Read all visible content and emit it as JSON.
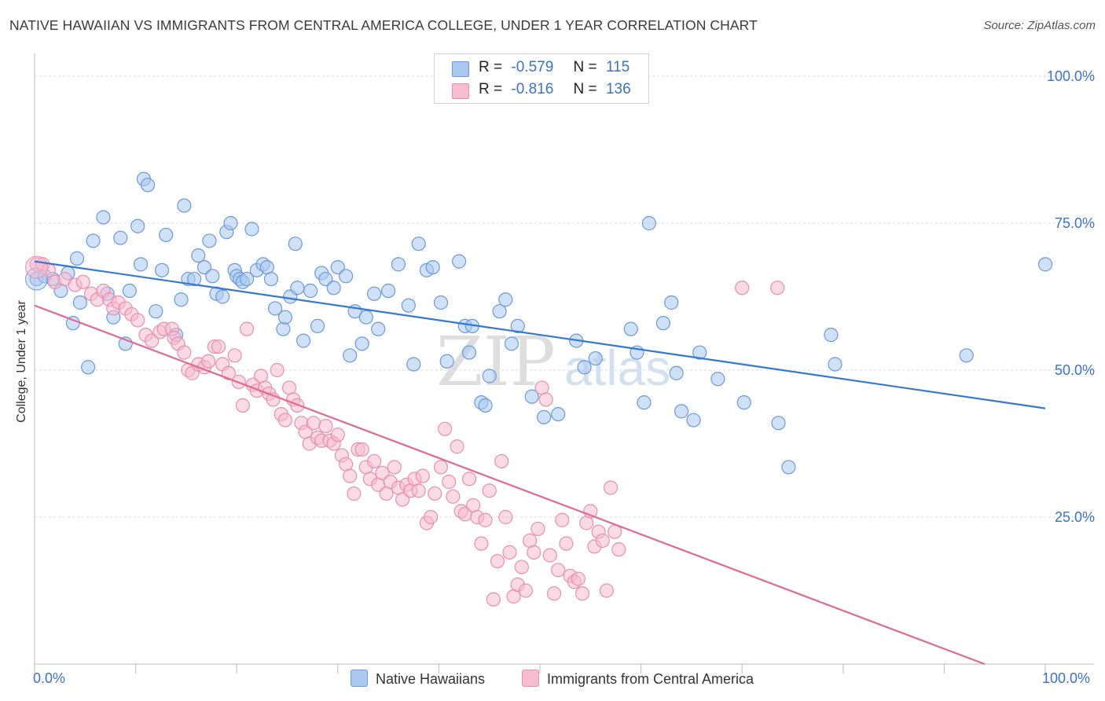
{
  "header": {
    "title": "NATIVE HAWAIIAN VS IMMIGRANTS FROM CENTRAL AMERICA COLLEGE, UNDER 1 YEAR CORRELATION CHART",
    "source": "Source: ZipAtlas.com"
  },
  "legend": {
    "r_label": "R =",
    "n_label": "N =",
    "rows": [
      {
        "r": "-0.579",
        "n": "115"
      },
      {
        "r": "-0.816",
        "n": "136"
      }
    ]
  },
  "bottom_legend": {
    "series1": "Native Hawaiians",
    "series2": "Immigrants from Central America"
  },
  "x_axis": {
    "min_label": "0.0%",
    "max_label": "100.0%"
  },
  "watermark": {
    "zip": "ZIP",
    "atlas": "atlas"
  },
  "colors": {
    "blue_fill": "#aac8f0",
    "blue_stroke": "#6a9ad8",
    "blue_line": "#3478d0",
    "pink_fill": "#f6bcd0",
    "pink_stroke": "#e78fae",
    "pink_line": "#e06a96",
    "tick_text": "#3a72c8",
    "grid": "#d8d8d8"
  },
  "chart_data": {
    "type": "scatter",
    "title": "NATIVE HAWAIIAN VS IMMIGRANTS FROM CENTRAL AMERICA COLLEGE, UNDER 1 YEAR CORRELATION CHART",
    "xlabel": "",
    "ylabel": "College, Under 1 year",
    "xlim": [
      0,
      100
    ],
    "ylim": [
      0,
      100
    ],
    "x_ticks_labeled": [
      "0.0%",
      "100.0%"
    ],
    "y_ticks": [
      25,
      50,
      75,
      100
    ],
    "y_tick_labels": [
      "25.0%",
      "50.0%",
      "75.0%",
      "100.0%"
    ],
    "grid": true,
    "series": [
      {
        "name": "Native Hawaiians",
        "r": -0.579,
        "n": 115,
        "trend": {
          "x0": 0,
          "y0": 68.5,
          "x1": 100,
          "y1": 43.5
        },
        "points": [
          [
            0.2,
            65.5
          ],
          [
            1,
            66
          ],
          [
            1.8,
            65.5
          ],
          [
            2.6,
            63.5
          ],
          [
            3.3,
            66.5
          ],
          [
            3.8,
            58
          ],
          [
            4.2,
            69
          ],
          [
            4.5,
            61.5
          ],
          [
            5.3,
            50.5
          ],
          [
            5.8,
            72
          ],
          [
            6.8,
            76
          ],
          [
            7.2,
            63
          ],
          [
            7.8,
            59
          ],
          [
            8.5,
            72.5
          ],
          [
            9,
            54.5
          ],
          [
            9.4,
            63.5
          ],
          [
            10.2,
            74.5
          ],
          [
            10.8,
            82.5
          ],
          [
            10.5,
            68
          ],
          [
            11.2,
            81.5
          ],
          [
            12,
            60
          ],
          [
            12.6,
            67
          ],
          [
            13,
            73
          ],
          [
            14,
            56
          ],
          [
            14.5,
            62
          ],
          [
            14.8,
            78
          ],
          [
            15.2,
            65.5
          ],
          [
            15.8,
            65.5
          ],
          [
            16.2,
            69.5
          ],
          [
            16.8,
            67.5
          ],
          [
            17.3,
            72
          ],
          [
            17.6,
            66
          ],
          [
            18,
            63
          ],
          [
            18.6,
            62.5
          ],
          [
            19,
            73.5
          ],
          [
            19.4,
            75
          ],
          [
            19.8,
            67
          ],
          [
            20,
            66
          ],
          [
            20.3,
            65.5
          ],
          [
            20.6,
            65
          ],
          [
            21,
            65.5
          ],
          [
            21.5,
            74
          ],
          [
            22,
            67
          ],
          [
            22.6,
            68
          ],
          [
            23,
            67.5
          ],
          [
            23.4,
            65.5
          ],
          [
            23.8,
            60.5
          ],
          [
            24.6,
            57
          ],
          [
            24.8,
            59
          ],
          [
            25.3,
            62.5
          ],
          [
            25.8,
            71.5
          ],
          [
            26,
            64
          ],
          [
            26.6,
            55
          ],
          [
            27.3,
            63.5
          ],
          [
            28,
            57.5
          ],
          [
            28.4,
            66.5
          ],
          [
            28.8,
            65.5
          ],
          [
            29.6,
            64
          ],
          [
            30,
            67.5
          ],
          [
            30.8,
            66
          ],
          [
            31.2,
            52.5
          ],
          [
            31.7,
            60
          ],
          [
            32.4,
            54.5
          ],
          [
            32.8,
            59
          ],
          [
            33.6,
            63
          ],
          [
            34,
            57
          ],
          [
            35,
            63.5
          ],
          [
            36,
            68
          ],
          [
            37,
            61
          ],
          [
            37.5,
            51
          ],
          [
            38,
            71.5
          ],
          [
            38.8,
            67
          ],
          [
            39.4,
            67.5
          ],
          [
            40.2,
            61.5
          ],
          [
            40.8,
            51.5
          ],
          [
            42,
            68.5
          ],
          [
            42.6,
            57.5
          ],
          [
            43,
            53
          ],
          [
            43.3,
            57.5
          ],
          [
            44.2,
            44.5
          ],
          [
            44.6,
            44
          ],
          [
            45,
            49
          ],
          [
            46,
            60
          ],
          [
            46.6,
            62
          ],
          [
            47.2,
            54.5
          ],
          [
            47.8,
            57.5
          ],
          [
            49.2,
            45.5
          ],
          [
            50.4,
            42
          ],
          [
            51.8,
            42.5
          ],
          [
            53.6,
            55
          ],
          [
            54.4,
            50.5
          ],
          [
            55.5,
            52
          ],
          [
            59,
            57
          ],
          [
            59.6,
            53
          ],
          [
            60.3,
            44.5
          ],
          [
            60.8,
            75
          ],
          [
            62.2,
            58
          ],
          [
            63,
            61.5
          ],
          [
            63.5,
            49.5
          ],
          [
            64,
            43
          ],
          [
            65.2,
            41.5
          ],
          [
            65.8,
            53
          ],
          [
            67.6,
            48.5
          ],
          [
            70.2,
            44.5
          ],
          [
            73.6,
            41
          ],
          [
            74.6,
            33.5
          ],
          [
            78.8,
            56
          ],
          [
            79.2,
            51
          ],
          [
            92.2,
            52.5
          ],
          [
            100,
            68
          ]
        ]
      },
      {
        "name": "Immigrants from Central America",
        "r": -0.816,
        "n": 136,
        "trend": {
          "x0": 0,
          "y0": 61,
          "x1": 94,
          "y1": 0
        },
        "points": [
          [
            0.2,
            68
          ],
          [
            0.8,
            68
          ],
          [
            1.4,
            67
          ],
          [
            2,
            65
          ],
          [
            3,
            65.5
          ],
          [
            4,
            64.5
          ],
          [
            4.8,
            65
          ],
          [
            5.6,
            63
          ],
          [
            6.2,
            62
          ],
          [
            6.8,
            63.5
          ],
          [
            7.4,
            62
          ],
          [
            7.8,
            60.5
          ],
          [
            8.3,
            61.5
          ],
          [
            9,
            60.5
          ],
          [
            9.6,
            59.5
          ],
          [
            10.2,
            58.5
          ],
          [
            11,
            56
          ],
          [
            11.6,
            55
          ],
          [
            12.4,
            56.5
          ],
          [
            12.8,
            57
          ],
          [
            13.6,
            57
          ],
          [
            13.8,
            55.5
          ],
          [
            14.2,
            54.5
          ],
          [
            14.8,
            53
          ],
          [
            15.2,
            50
          ],
          [
            15.6,
            49.5
          ],
          [
            16.2,
            51
          ],
          [
            16.8,
            50.5
          ],
          [
            17.2,
            51.5
          ],
          [
            17.8,
            54
          ],
          [
            18.2,
            54
          ],
          [
            18.6,
            51
          ],
          [
            19.2,
            49.5
          ],
          [
            19.8,
            52.5
          ],
          [
            20.2,
            48
          ],
          [
            20.6,
            44
          ],
          [
            21,
            57
          ],
          [
            21.6,
            47.5
          ],
          [
            22,
            46.5
          ],
          [
            22.4,
            49
          ],
          [
            22.8,
            47
          ],
          [
            23.2,
            46
          ],
          [
            23.6,
            45
          ],
          [
            24,
            50
          ],
          [
            24.4,
            42.5
          ],
          [
            24.8,
            41.5
          ],
          [
            25.2,
            47
          ],
          [
            25.6,
            45
          ],
          [
            26,
            44
          ],
          [
            26.4,
            41
          ],
          [
            26.8,
            39.5
          ],
          [
            27.2,
            37.5
          ],
          [
            27.6,
            41
          ],
          [
            28,
            38.5
          ],
          [
            28.4,
            38
          ],
          [
            28.8,
            40.5
          ],
          [
            29.2,
            38
          ],
          [
            29.6,
            37.5
          ],
          [
            30,
            39
          ],
          [
            30.4,
            35.5
          ],
          [
            30.8,
            34
          ],
          [
            31.2,
            32
          ],
          [
            31.6,
            29
          ],
          [
            32,
            36.5
          ],
          [
            32.4,
            36.5
          ],
          [
            32.8,
            33.5
          ],
          [
            33.2,
            31.5
          ],
          [
            33.6,
            34.5
          ],
          [
            34,
            30.5
          ],
          [
            34.4,
            32.5
          ],
          [
            34.8,
            29
          ],
          [
            35.2,
            31
          ],
          [
            35.6,
            33.5
          ],
          [
            36,
            30
          ],
          [
            36.4,
            28
          ],
          [
            36.8,
            30.5
          ],
          [
            37.2,
            29.5
          ],
          [
            37.6,
            31.5
          ],
          [
            38,
            29.5
          ],
          [
            38.4,
            32
          ],
          [
            38.8,
            24
          ],
          [
            39.2,
            25
          ],
          [
            39.6,
            29
          ],
          [
            40.2,
            33.5
          ],
          [
            40.6,
            40
          ],
          [
            41,
            31
          ],
          [
            41.4,
            28.5
          ],
          [
            41.8,
            37
          ],
          [
            42.2,
            26
          ],
          [
            42.6,
            25.5
          ],
          [
            43,
            31.5
          ],
          [
            43.4,
            27
          ],
          [
            43.8,
            25
          ],
          [
            44.2,
            20.5
          ],
          [
            44.6,
            24.5
          ],
          [
            45,
            29.5
          ],
          [
            45.4,
            11
          ],
          [
            45.8,
            17.5
          ],
          [
            46.2,
            34.5
          ],
          [
            46.6,
            25
          ],
          [
            47,
            19
          ],
          [
            47.4,
            11.5
          ],
          [
            47.8,
            13.5
          ],
          [
            48.2,
            16.5
          ],
          [
            48.6,
            12.5
          ],
          [
            49,
            21
          ],
          [
            49.4,
            19
          ],
          [
            49.8,
            23
          ],
          [
            50.2,
            47
          ],
          [
            50.6,
            45
          ],
          [
            51,
            18.5
          ],
          [
            51.4,
            12
          ],
          [
            51.8,
            16
          ],
          [
            52.2,
            24.5
          ],
          [
            52.6,
            20.5
          ],
          [
            53,
            15
          ],
          [
            53.4,
            14
          ],
          [
            53.8,
            14.5
          ],
          [
            54.2,
            12
          ],
          [
            54.6,
            24
          ],
          [
            55,
            26
          ],
          [
            55.4,
            20
          ],
          [
            55.8,
            22.5
          ],
          [
            56.2,
            21
          ],
          [
            56.6,
            12.5
          ],
          [
            57,
            30
          ],
          [
            57.4,
            22.5
          ],
          [
            57.8,
            19.5
          ],
          [
            70,
            64
          ],
          [
            73.5,
            64
          ]
        ]
      }
    ]
  }
}
